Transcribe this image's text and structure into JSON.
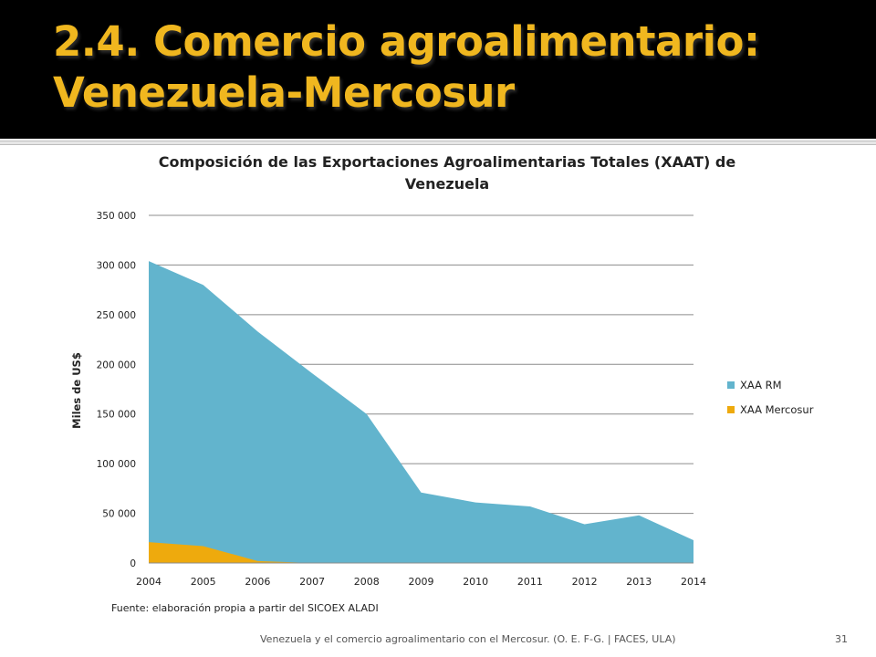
{
  "slide": {
    "title_line1": "2.4. Comercio agroalimentario:",
    "title_line2": "Venezuela-Mercosur",
    "source": "Fuente: elaboración propia a partir del SICOEX ALADI",
    "footer": "Venezuela y el comercio agroalimentario con el Mercosur. (O. E. F-G. | FACES, ULA)",
    "page_number": "31"
  },
  "colors": {
    "title": "#F0B71F",
    "series_rm": "#62B4CD",
    "series_mercosur": "#EEAA0D",
    "gridline": "#8c8c8c"
  },
  "chart_data": {
    "type": "area",
    "stacked": true,
    "title": "Composición de las Exportaciones Agroalimentarias Totales (XAAT) de Venezuela",
    "xlabel": "",
    "ylabel": "Miles de US$",
    "ylim": [
      0,
      350000
    ],
    "yticks": [
      0,
      50000,
      100000,
      150000,
      200000,
      250000,
      300000,
      350000
    ],
    "ytick_labels": [
      "0",
      "50 000",
      "100 000",
      "150 000",
      "200 000",
      "250 000",
      "300 000",
      "350 000"
    ],
    "categories": [
      "2004",
      "2005",
      "2006",
      "2007",
      "2008",
      "2009",
      "2010",
      "2011",
      "2012",
      "2013",
      "2014"
    ],
    "series": [
      {
        "name": "XAA RM",
        "values": [
          283000,
          263000,
          231000,
          191000,
          150000,
          71000,
          61000,
          57000,
          39000,
          48000,
          23000
        ]
      },
      {
        "name": "XAA Mercosur",
        "values": [
          21000,
          17000,
          2000,
          0,
          0,
          0,
          0,
          0,
          0,
          0,
          0
        ]
      }
    ],
    "grid": true,
    "legend": "right"
  }
}
